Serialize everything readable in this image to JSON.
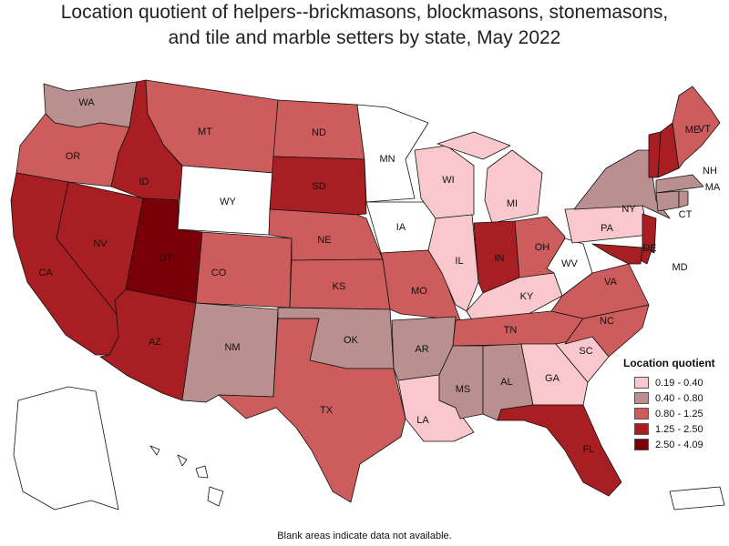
{
  "title": {
    "line1": "Location quotient of helpers--brickmasons, blockmasons, stonemasons,",
    "line2": "and tile and marble setters by state, May 2022"
  },
  "legend": {
    "title": "Location quotient",
    "classes": [
      {
        "label": "0.19 - 0.40",
        "color": "#f9c8cc"
      },
      {
        "label": "0.40 - 0.80",
        "color": "#b98f8f"
      },
      {
        "label": "0.80 - 1.25",
        "color": "#cd5c5c"
      },
      {
        "label": "1.25 - 2.50",
        "color": "#a91e22"
      },
      {
        "label": "2.50 - 4.09",
        "color": "#7a0008"
      }
    ],
    "no_data_color": "#ffffff"
  },
  "footnote": "Blank areas indicate data not available.",
  "states": [
    {
      "abbr": "WA",
      "class": 1
    },
    {
      "abbr": "OR",
      "class": 2
    },
    {
      "abbr": "CA",
      "class": 3
    },
    {
      "abbr": "ID",
      "class": 3
    },
    {
      "abbr": "NV",
      "class": 3
    },
    {
      "abbr": "UT",
      "class": 4
    },
    {
      "abbr": "AZ",
      "class": 3
    },
    {
      "abbr": "MT",
      "class": 2
    },
    {
      "abbr": "WY",
      "class": null
    },
    {
      "abbr": "CO",
      "class": 2
    },
    {
      "abbr": "NM",
      "class": 1
    },
    {
      "abbr": "ND",
      "class": 2
    },
    {
      "abbr": "SD",
      "class": 3
    },
    {
      "abbr": "NE",
      "class": 2
    },
    {
      "abbr": "KS",
      "class": 2
    },
    {
      "abbr": "OK",
      "class": 1
    },
    {
      "abbr": "TX",
      "class": 2
    },
    {
      "abbr": "MN",
      "class": null
    },
    {
      "abbr": "IA",
      "class": null
    },
    {
      "abbr": "MO",
      "class": 2
    },
    {
      "abbr": "AR",
      "class": 1
    },
    {
      "abbr": "LA",
      "class": 0
    },
    {
      "abbr": "WI",
      "class": 0
    },
    {
      "abbr": "IL",
      "class": 0
    },
    {
      "abbr": "MI",
      "class": 0
    },
    {
      "abbr": "IN",
      "class": 3
    },
    {
      "abbr": "OH",
      "class": 2
    },
    {
      "abbr": "KY",
      "class": 0
    },
    {
      "abbr": "TN",
      "class": 2
    },
    {
      "abbr": "MS",
      "class": 1
    },
    {
      "abbr": "AL",
      "class": 1
    },
    {
      "abbr": "GA",
      "class": 0
    },
    {
      "abbr": "FL",
      "class": 3
    },
    {
      "abbr": "SC",
      "class": 0
    },
    {
      "abbr": "NC",
      "class": 2
    },
    {
      "abbr": "VA",
      "class": 2
    },
    {
      "abbr": "WV",
      "class": null
    },
    {
      "abbr": "PA",
      "class": 0
    },
    {
      "abbr": "NY",
      "class": 1
    },
    {
      "abbr": "VT",
      "class": 3
    },
    {
      "abbr": "NH",
      "class": 3
    },
    {
      "abbr": "ME",
      "class": 2
    },
    {
      "abbr": "MA",
      "class": 1
    },
    {
      "abbr": "CT",
      "class": 1
    },
    {
      "abbr": "RI",
      "class": 1
    },
    {
      "abbr": "NJ",
      "class": 3
    },
    {
      "abbr": "DE",
      "class": 3
    },
    {
      "abbr": "MD",
      "class": 3
    },
    {
      "abbr": "AK",
      "class": null
    },
    {
      "abbr": "HI",
      "class": null
    },
    {
      "abbr": "PR",
      "class": null
    }
  ]
}
